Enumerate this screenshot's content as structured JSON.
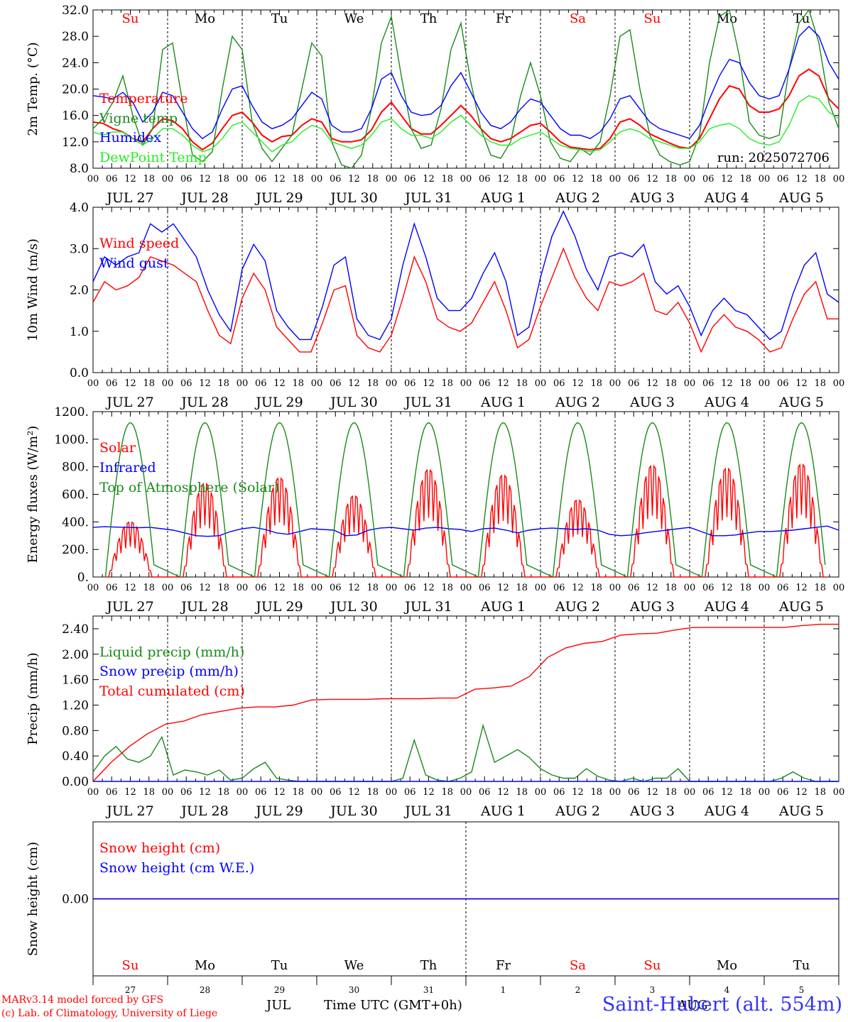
{
  "colors": {
    "red": "#ff0000",
    "blue": "#0000ff",
    "green": "#1a8a1a",
    "lime": "#22ee22",
    "axis": "#000000"
  },
  "days": [
    {
      "wd": "Su",
      "date": "JUL 27",
      "num": "27",
      "weekend": true
    },
    {
      "wd": "Mo",
      "date": "JUL 28",
      "num": "28",
      "weekend": false
    },
    {
      "wd": "Tu",
      "date": "JUL 29",
      "num": "29",
      "weekend": false
    },
    {
      "wd": "We",
      "date": "JUL 30",
      "num": "30",
      "weekend": false
    },
    {
      "wd": "Th",
      "date": "JUL 31",
      "num": "31",
      "weekend": false
    },
    {
      "wd": "Fr",
      "date": "AUG  1",
      "num": "1",
      "weekend": false
    },
    {
      "wd": "Sa",
      "date": "AUG  2",
      "num": "2",
      "weekend": true
    },
    {
      "wd": "Su",
      "date": "AUG  3",
      "num": "3",
      "weekend": true
    },
    {
      "wd": "Mo",
      "date": "AUG  4",
      "num": "4",
      "weekend": false
    },
    {
      "wd": "Tu",
      "date": "AUG  5",
      "num": "5",
      "weekend": false
    }
  ],
  "hour_labels": [
    "00",
    "06",
    "12",
    "18"
  ],
  "run_label": "run: 2025072706",
  "footer": {
    "model": "MARv3.14 model forced by GFS",
    "credit": "(c) Lab. of Climatology, University of Liege",
    "month_jul": "JUL",
    "month_aug": "AUG",
    "time_axis": "Time UTC (GMT+0h)",
    "station": "Saint-Hubert (alt. 554m)"
  },
  "chart_data": [
    {
      "type": "line",
      "ylabel": "2m Temp. (°C)",
      "ylim": [
        8,
        32
      ],
      "yticks": [
        "8.0",
        "12.0",
        "16.0",
        "20.0",
        "24.0",
        "28.0",
        "32.0"
      ],
      "ytick_values": [
        8,
        12,
        16,
        20,
        24,
        28,
        32
      ],
      "series": [
        {
          "name": "Temperature",
          "color": "#ff0000",
          "values": [
            15.0,
            14.8,
            14.0,
            13.5,
            12.5,
            12.0,
            14.0,
            15.5,
            15.2,
            14.0,
            12.0,
            10.8,
            11.8,
            14.0,
            16.0,
            16.5,
            15.0,
            13.0,
            12.0,
            12.8,
            13.0,
            14.5,
            15.5,
            15.0,
            12.5,
            12.0,
            12.0,
            12.3,
            13.8,
            16.5,
            18.0,
            16.0,
            14.0,
            13.2,
            13.2,
            14.5,
            16.0,
            17.5,
            16.0,
            14.0,
            12.5,
            12.0,
            12.5,
            13.5,
            14.5,
            14.8,
            13.5,
            12.0,
            11.2,
            11.0,
            10.8,
            11.0,
            12.5,
            15.0,
            15.5,
            14.5,
            13.2,
            12.5,
            11.8,
            11.2,
            11.0,
            12.5,
            15.5,
            18.5,
            20.5,
            20.0,
            17.5,
            16.5,
            16.5,
            17.0,
            19.0,
            22.0,
            23.0,
            22.0,
            18.5,
            17.0
          ]
        },
        {
          "name": "Vigne temp",
          "color": "#1a8a1a",
          "values": [
            14.0,
            15.5,
            18.0,
            22.0,
            16.0,
            11.5,
            14.0,
            26.0,
            27.0,
            18.0,
            10.0,
            9.0,
            10.5,
            20.0,
            28.0,
            26.0,
            15.0,
            11.0,
            9.0,
            11.0,
            13.0,
            20.0,
            27.0,
            25.0,
            12.0,
            8.5,
            8.0,
            10.0,
            17.0,
            27.0,
            31.0,
            22.0,
            14.0,
            11.0,
            11.5,
            17.0,
            26.0,
            30.0,
            21.0,
            14.0,
            10.0,
            9.5,
            12.0,
            19.0,
            24.0,
            19.0,
            12.0,
            9.5,
            9.0,
            11.0,
            10.0,
            12.0,
            19.0,
            28.0,
            29.0,
            20.0,
            13.0,
            10.0,
            9.0,
            8.5,
            9.0,
            13.0,
            24.0,
            31.0,
            32.0,
            25.0,
            15.0,
            13.0,
            12.5,
            13.0,
            23.0,
            30.0,
            32.0,
            27.0,
            18.0,
            14.0
          ]
        },
        {
          "name": "Humidex",
          "color": "#0000ff",
          "values": [
            19.0,
            18.8,
            18.5,
            19.5,
            18.0,
            15.0,
            16.5,
            19.5,
            19.0,
            16.5,
            14.0,
            12.5,
            13.5,
            17.0,
            20.0,
            20.5,
            17.5,
            15.0,
            14.0,
            14.5,
            15.5,
            17.5,
            19.5,
            18.5,
            14.5,
            13.5,
            13.5,
            14.0,
            17.0,
            21.5,
            22.5,
            19.0,
            16.5,
            16.0,
            16.2,
            17.5,
            20.5,
            22.5,
            19.5,
            16.5,
            14.5,
            14.0,
            15.0,
            17.0,
            18.5,
            18.0,
            16.0,
            14.0,
            13.0,
            13.0,
            12.5,
            13.5,
            15.5,
            18.5,
            19.0,
            17.0,
            15.0,
            14.0,
            13.5,
            13.0,
            12.5,
            14.5,
            18.5,
            22.0,
            24.5,
            24.0,
            21.0,
            19.0,
            18.5,
            19.0,
            23.0,
            28.0,
            29.5,
            28.0,
            24.0,
            21.5
          ]
        },
        {
          "name": "DewPoint Temp",
          "color": "#22ee22",
          "values": [
            13.5,
            13.0,
            13.5,
            13.5,
            12.5,
            11.5,
            12.5,
            14.0,
            14.0,
            13.0,
            11.5,
            10.5,
            11.0,
            12.5,
            14.5,
            15.0,
            13.5,
            12.0,
            10.5,
            11.5,
            12.0,
            13.5,
            14.5,
            14.0,
            12.0,
            11.5,
            11.0,
            11.5,
            13.0,
            15.0,
            15.5,
            14.0,
            13.0,
            13.0,
            12.5,
            13.5,
            15.0,
            16.0,
            14.5,
            13.0,
            12.0,
            11.5,
            11.5,
            12.5,
            13.0,
            13.5,
            12.5,
            11.5,
            11.0,
            10.8,
            10.5,
            10.8,
            12.0,
            13.5,
            14.0,
            13.5,
            12.5,
            12.0,
            11.5,
            11.0,
            11.0,
            12.0,
            14.0,
            14.5,
            14.8,
            14.0,
            12.5,
            11.8,
            11.5,
            12.0,
            14.5,
            18.0,
            19.0,
            18.5,
            16.5,
            15.5
          ]
        }
      ]
    },
    {
      "type": "line",
      "ylabel": "10m Wind (m/s)",
      "ylim": [
        0,
        4
      ],
      "yticks": [
        "0.0",
        "1.0",
        "2.0",
        "3.0",
        "4.0"
      ],
      "ytick_values": [
        0,
        1,
        2,
        3,
        4
      ],
      "series": [
        {
          "name": "Wind speed",
          "color": "#ff0000",
          "values": [
            1.7,
            2.2,
            2.0,
            2.1,
            2.3,
            2.8,
            2.7,
            2.6,
            2.4,
            2.2,
            1.5,
            0.9,
            0.7,
            1.8,
            2.4,
            2.0,
            1.1,
            0.8,
            0.5,
            0.5,
            1.2,
            2.0,
            2.1,
            0.9,
            0.6,
            0.5,
            0.9,
            1.8,
            2.8,
            2.2,
            1.3,
            1.1,
            1.0,
            1.2,
            1.7,
            2.2,
            1.5,
            0.6,
            0.8,
            1.6,
            2.3,
            3.0,
            2.3,
            1.8,
            1.5,
            2.2,
            2.1,
            2.2,
            2.4,
            1.5,
            1.4,
            1.7,
            1.2,
            0.5,
            1.1,
            1.4,
            1.1,
            1.0,
            0.8,
            0.5,
            0.6,
            1.3,
            1.9,
            2.2,
            1.3,
            1.3
          ]
        },
        {
          "name": "Wind gust",
          "color": "#0000ff",
          "values": [
            2.2,
            2.8,
            2.6,
            2.8,
            2.9,
            3.6,
            3.4,
            3.6,
            3.2,
            2.8,
            2.0,
            1.4,
            1.0,
            2.5,
            3.1,
            2.7,
            1.5,
            1.1,
            0.8,
            0.8,
            1.6,
            2.6,
            2.8,
            1.3,
            0.9,
            0.8,
            1.3,
            2.6,
            3.6,
            2.8,
            1.8,
            1.5,
            1.5,
            1.8,
            2.4,
            2.9,
            2.2,
            0.9,
            1.1,
            2.3,
            3.3,
            3.9,
            3.3,
            2.5,
            2.0,
            2.8,
            2.9,
            2.8,
            3.1,
            2.2,
            1.9,
            2.1,
            1.6,
            0.9,
            1.5,
            1.8,
            1.5,
            1.4,
            1.1,
            0.8,
            1.0,
            1.9,
            2.6,
            2.9,
            1.9,
            1.7
          ]
        }
      ]
    },
    {
      "type": "line",
      "ylabel": "Energy fluxes (W/m²)",
      "ylim": [
        0,
        1200
      ],
      "yticks": [
        "0.",
        "200.",
        "400.",
        "600.",
        "800.",
        "1000.",
        "1200."
      ],
      "ytick_values": [
        0,
        200,
        400,
        600,
        800,
        1000,
        1200
      ],
      "series": [
        {
          "name": "Solar",
          "color": "#ff0000",
          "daily_peaks": [
            400,
            680,
            720,
            590,
            780,
            740,
            560,
            810,
            790,
            820
          ]
        },
        {
          "name": "Infrared",
          "color": "#0000ff",
          "values": [
            360,
            365,
            362,
            360,
            358,
            360,
            350,
            340,
            320,
            300,
            295,
            300,
            330,
            350,
            360,
            345,
            320,
            310,
            330,
            350,
            345,
            340,
            300,
            305,
            340,
            355,
            360,
            350,
            340,
            355,
            360,
            350,
            345,
            330,
            350,
            355,
            340,
            320,
            340,
            350,
            355,
            350,
            345,
            350,
            340,
            310,
            300,
            305,
            320,
            330,
            340,
            350,
            360,
            330,
            300,
            300,
            305,
            320,
            330,
            330,
            335,
            340,
            350,
            360,
            370,
            340
          ]
        },
        {
          "name": "Top of Atmosphere (Solar)",
          "color": "#1a8a1a",
          "daily_peak": 1120
        }
      ]
    },
    {
      "type": "line",
      "ylabel": "Precip (mm/h)",
      "ylim": [
        0,
        2.6
      ],
      "yticks": [
        "0.00",
        "0.40",
        "0.80",
        "1.20",
        "1.60",
        "2.00",
        "2.40"
      ],
      "ytick_values": [
        0,
        0.4,
        0.8,
        1.2,
        1.6,
        2.0,
        2.4
      ],
      "series": [
        {
          "name": "Liquid precip (mm/h)",
          "color": "#1a8a1a",
          "values": [
            0.15,
            0.4,
            0.55,
            0.35,
            0.3,
            0.4,
            0.7,
            0.1,
            0.18,
            0.15,
            0.1,
            0.18,
            0.02,
            0.05,
            0.2,
            0.3,
            0.05,
            0.02,
            0.0,
            0.0,
            0.0,
            0.0,
            0.0,
            0.0,
            0.0,
            0.0,
            0.0,
            0.05,
            0.65,
            0.1,
            0.02,
            0.0,
            0.05,
            0.15,
            0.88,
            0.3,
            0.4,
            0.5,
            0.38,
            0.2,
            0.1,
            0.05,
            0.05,
            0.2,
            0.08,
            0.02,
            0.0,
            0.05,
            0.0,
            0.05,
            0.05,
            0.2,
            0.0,
            0.0,
            0.0,
            0.0,
            0.0,
            0.0,
            0.0,
            0.0,
            0.05,
            0.15,
            0.05,
            0.0,
            0.0,
            0.0
          ]
        },
        {
          "name": "Snow precip (mm/h)",
          "color": "#0000ff",
          "values": [
            0
          ]
        },
        {
          "name": "Total cumulated (cm)",
          "color": "#ff0000",
          "values": [
            0.0,
            0.3,
            0.55,
            0.75,
            0.9,
            0.95,
            1.05,
            1.1,
            1.15,
            1.17,
            1.17,
            1.2,
            1.28,
            1.29,
            1.29,
            1.29,
            1.3,
            1.3,
            1.3,
            1.31,
            1.31,
            1.45,
            1.47,
            1.5,
            1.65,
            1.95,
            2.1,
            2.17,
            2.2,
            2.3,
            2.32,
            2.33,
            2.38,
            2.42,
            2.42,
            2.42,
            2.42,
            2.42,
            2.42,
            2.45,
            2.47,
            2.47
          ]
        }
      ]
    },
    {
      "type": "line",
      "ylabel": "Snow height (cm)",
      "ylim": [
        -1,
        1
      ],
      "yticks": [
        "0.00"
      ],
      "ytick_values": [
        0
      ],
      "series": [
        {
          "name": "Snow height (cm)",
          "color": "#ff0000",
          "values": [
            0,
            0
          ]
        },
        {
          "name": "Snow height (cm W.E.)",
          "color": "#0000ff",
          "values": [
            0,
            0
          ]
        }
      ]
    }
  ]
}
